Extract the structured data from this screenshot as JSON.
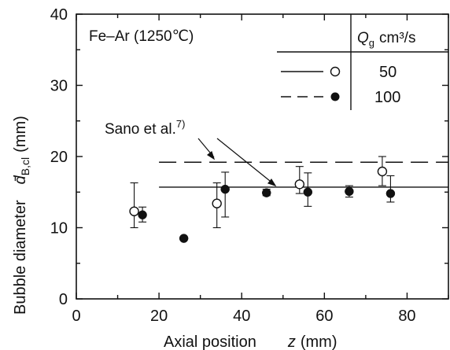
{
  "chart_data": {
    "type": "scatter",
    "xlabel_main": "Axial position",
    "xlabel_var": "z",
    "xlabel_unit": "(mm)",
    "ylabel_main": "Bubble diameter",
    "ylabel_sym": "d̄",
    "ylabel_sub": "B,cl",
    "ylabel_unit": "(mm)",
    "xlim": [
      0,
      90
    ],
    "ylim": [
      0,
      40
    ],
    "xticks": [
      0,
      20,
      40,
      60,
      80
    ],
    "yticks": [
      0,
      10,
      20,
      30,
      40
    ],
    "system_label": "Fe–Ar (1250℃)",
    "legend": {
      "header_sym": "Q",
      "header_sub": "g",
      "header_unit": "cm³/s",
      "entries": [
        {
          "line": "solid",
          "marker": "open",
          "value": "50"
        },
        {
          "line": "dashed",
          "marker": "filled",
          "value": "100"
        }
      ]
    },
    "series": [
      {
        "name": "50",
        "marker": "open",
        "points": [
          {
            "x": 14,
            "y": 12.3,
            "err_lo": 10.0,
            "err_hi": 16.3
          },
          {
            "x": 34,
            "y": 13.4,
            "err_lo": 10.0,
            "err_hi": 16.3
          },
          {
            "x": 54,
            "y": 16.1,
            "err_lo": 14.8,
            "err_hi": 18.6
          },
          {
            "x": 74,
            "y": 17.9,
            "err_lo": 15.9,
            "err_hi": 20.0
          }
        ]
      },
      {
        "name": "100",
        "marker": "filled",
        "points": [
          {
            "x": 16,
            "y": 11.8,
            "err_lo": 10.8,
            "err_hi": 12.9
          },
          {
            "x": 26,
            "y": 8.5
          },
          {
            "x": 36,
            "y": 15.4,
            "err_lo": 11.5,
            "err_hi": 17.8
          },
          {
            "x": 46,
            "y": 14.9,
            "err_lo": 14.5,
            "err_hi": 15.4
          },
          {
            "x": 56,
            "y": 15.0,
            "err_lo": 13.0,
            "err_hi": 17.7
          },
          {
            "x": 66,
            "y": 15.1,
            "err_lo": 14.3,
            "err_hi": 15.9
          },
          {
            "x": 76,
            "y": 14.8,
            "err_lo": 13.6,
            "err_hi": 17.3
          }
        ]
      }
    ],
    "reference_lines": [
      {
        "style": "solid",
        "y": 15.7,
        "x_start": 20,
        "x_end": 90
      },
      {
        "style": "dashed",
        "y": 19.2,
        "x_start": 20,
        "x_end": 90
      }
    ],
    "annotation": {
      "text": "Sano et al.",
      "superscript": "7)"
    }
  }
}
